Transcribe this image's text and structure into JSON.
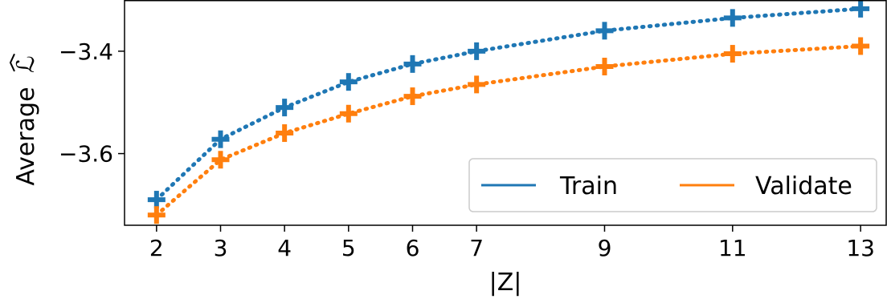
{
  "chart_data": {
    "type": "line",
    "x": [
      2,
      3,
      4,
      5,
      6,
      7,
      9,
      11,
      13
    ],
    "x_ticks": [
      "2",
      "3",
      "4",
      "5",
      "6",
      "7",
      "9",
      "11",
      "13"
    ],
    "xlabel": "|Z|",
    "ylabel": "Average",
    "ylabel_symbol": "ℒ",
    "y_ticks": [
      "−3.6",
      "−3.4"
    ],
    "y_tick_values": [
      -3.6,
      -3.4
    ],
    "xlim": [
      1.5,
      13.4
    ],
    "ylim": [
      -3.74,
      -3.3
    ],
    "grid": false,
    "legend_position": "lower-right",
    "line_style": "dotted",
    "marker": "plus",
    "series": [
      {
        "name": "Train",
        "color": "#1f77b4",
        "values": [
          -3.69,
          -3.572,
          -3.51,
          -3.46,
          -3.425,
          -3.4,
          -3.36,
          -3.335,
          -3.317
        ]
      },
      {
        "name": "Validate",
        "color": "#ff7f0e",
        "values": [
          -3.72,
          -3.612,
          -3.56,
          -3.522,
          -3.488,
          -3.465,
          -3.43,
          -3.405,
          -3.39
        ]
      }
    ]
  }
}
